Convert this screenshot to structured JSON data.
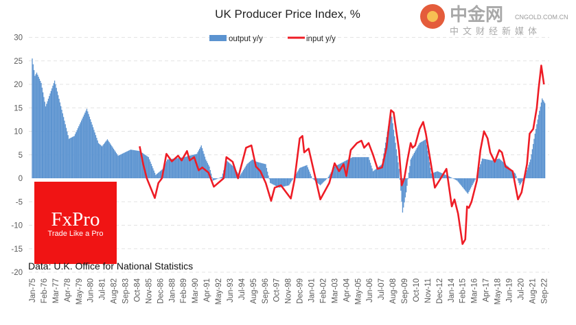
{
  "chart_data": {
    "type": "bar+line",
    "title": "UK Producer Price Index, %",
    "xlabel": "",
    "ylabel": "",
    "ylim": [
      -20,
      30
    ],
    "yticks": [
      30,
      25,
      20,
      15,
      10,
      5,
      0,
      -5,
      -10,
      -15,
      -20
    ],
    "grid": true,
    "legend_position": "top",
    "x_tick_labels": [
      "Jan-75",
      "Feb-76",
      "Mar-77",
      "Apr-78",
      "May-79",
      "Jun-80",
      "Jul-81",
      "Aug-82",
      "Sep-83",
      "Oct-84",
      "Nov-85",
      "Dec-86",
      "Jan-88",
      "Feb-89",
      "Mar-90",
      "Apr-91",
      "May-92",
      "Jun-93",
      "Jul-94",
      "Aug-95",
      "Sep-96",
      "Oct-97",
      "Nov-98",
      "Dec-99",
      "Jan-01",
      "Feb-02",
      "Mar-03",
      "Apr-04",
      "May-05",
      "Jun-06",
      "Jul-07",
      "Aug-08",
      "Sep-09",
      "Oct-10",
      "Nov-11",
      "Dec-12",
      "Jan-14",
      "Feb-15",
      "Mar-16",
      "Apr-17",
      "May-18",
      "Jun-19",
      "Jul-20",
      "Aug-21",
      "Sep-22"
    ],
    "series": [
      {
        "name": "output y/y",
        "type": "bar",
        "color": "#5b93d0",
        "points": [
          [
            "1975-01",
            25.5
          ],
          [
            "1975-04",
            21.8
          ],
          [
            "1975-06",
            22.5
          ],
          [
            "1975-11",
            20.3
          ],
          [
            "1976-04",
            15.3
          ],
          [
            "1977-02",
            20.8
          ],
          [
            "1978-06",
            8.4
          ],
          [
            "1978-12",
            9
          ],
          [
            "1980-02",
            14.8
          ],
          [
            "1981-03",
            7.5
          ],
          [
            "1981-07",
            6.8
          ],
          [
            "1982-01",
            8.3
          ],
          [
            "1983-01",
            4.8
          ],
          [
            "1984-03",
            6.1
          ],
          [
            "1985-01",
            5.8
          ],
          [
            "1985-11",
            4.5
          ],
          [
            "1986-07",
            0.7
          ],
          [
            "1987-03",
            2
          ],
          [
            "1987-08",
            4
          ],
          [
            "1989-03",
            4.5
          ],
          [
            "1990-05",
            5.2
          ],
          [
            "1990-10",
            7
          ],
          [
            "1991-03",
            4
          ],
          [
            "1991-07",
            2.5
          ],
          [
            "1991-11",
            -0.5
          ],
          [
            "1992-09",
            0.3
          ],
          [
            "1993-02",
            3.8
          ],
          [
            "1993-10",
            2.5
          ],
          [
            "1994-05",
            0.5
          ],
          [
            "1995-01",
            3
          ],
          [
            "1995-07",
            4
          ],
          [
            "1995-12",
            3.5
          ],
          [
            "1996-10",
            3
          ],
          [
            "1997-03",
            -1
          ],
          [
            "1998-01",
            -2
          ],
          [
            "1998-12",
            -1.5
          ],
          [
            "1999-05",
            0
          ],
          [
            "1999-12",
            2.2
          ],
          [
            "2000-08",
            2.8
          ],
          [
            "2001-02",
            0
          ],
          [
            "2001-11",
            -1.5
          ],
          [
            "2002-07",
            0
          ],
          [
            "2003-03",
            2.5
          ],
          [
            "2004-11",
            4.5
          ],
          [
            "2006-05",
            4.5
          ],
          [
            "2006-10",
            1.5
          ],
          [
            "2007-08",
            3
          ],
          [
            "2008-06",
            14.5
          ],
          [
            "2009-03",
            2
          ],
          [
            "2009-07",
            -7.3
          ],
          [
            "2009-11",
            -3
          ],
          [
            "2010-04",
            4
          ],
          [
            "2011-02",
            7.5
          ],
          [
            "2011-09",
            8.3
          ],
          [
            "2012-03",
            1
          ],
          [
            "2012-10",
            1.5
          ],
          [
            "2013-10",
            0.5
          ],
          [
            "2014-08",
            -0.5
          ],
          [
            "2015-08",
            -3.3
          ],
          [
            "2016-05",
            0
          ],
          [
            "2016-12",
            4.2
          ],
          [
            "2017-11",
            3.8
          ],
          [
            "2018-07",
            4.2
          ],
          [
            "2019-05",
            2.5
          ],
          [
            "2020-01",
            1
          ],
          [
            "2020-06",
            -1.5
          ],
          [
            "2020-11",
            0
          ],
          [
            "2021-06",
            4
          ],
          [
            "2021-11",
            9.5
          ],
          [
            "2022-03",
            13.5
          ],
          [
            "2022-07",
            17
          ],
          [
            "2022-10",
            16
          ]
        ]
      },
      {
        "name": "input y/y",
        "type": "line",
        "color": "#ee1c25",
        "points": [
          [
            "1985-01",
            6.8
          ],
          [
            "1985-05",
            3
          ],
          [
            "1985-09",
            0
          ],
          [
            "1986-06",
            -4.2
          ],
          [
            "1986-10",
            -1
          ],
          [
            "1987-02",
            0
          ],
          [
            "1987-07",
            5.2
          ],
          [
            "1988-01",
            3.6
          ],
          [
            "1988-08",
            4.8
          ],
          [
            "1988-12",
            3.8
          ],
          [
            "1989-06",
            5.8
          ],
          [
            "1989-09",
            3.8
          ],
          [
            "1990-02",
            4.5
          ],
          [
            "1990-07",
            1.7
          ],
          [
            "1990-11",
            2.3
          ],
          [
            "1991-06",
            1.2
          ],
          [
            "1991-12",
            -1.8
          ],
          [
            "1992-11",
            0
          ],
          [
            "1993-02",
            4.5
          ],
          [
            "1993-09",
            3.5
          ],
          [
            "1994-03",
            0
          ],
          [
            "1994-12",
            6.5
          ],
          [
            "1995-06",
            7
          ],
          [
            "1995-11",
            2.5
          ],
          [
            "1996-04",
            1.5
          ],
          [
            "1996-10",
            -1
          ],
          [
            "1997-04",
            -4.8
          ],
          [
            "1997-08",
            -2
          ],
          [
            "1998-03",
            -1.5
          ],
          [
            "1999-02",
            -4.3
          ],
          [
            "1999-06",
            -0.5
          ],
          [
            "1999-12",
            8.5
          ],
          [
            "2000-03",
            9
          ],
          [
            "2000-05",
            5.5
          ],
          [
            "2000-10",
            6.3
          ],
          [
            "2001-11",
            -4.5
          ],
          [
            "2002-09",
            -1
          ],
          [
            "2003-03",
            3.2
          ],
          [
            "2003-08",
            1.5
          ],
          [
            "2004-01",
            3
          ],
          [
            "2004-04",
            0.5
          ],
          [
            "2004-09",
            6
          ],
          [
            "2005-04",
            7.5
          ],
          [
            "2005-09",
            8
          ],
          [
            "2005-12",
            6.5
          ],
          [
            "2006-05",
            7.5
          ],
          [
            "2006-10",
            5
          ],
          [
            "2007-03",
            2
          ],
          [
            "2007-08",
            2.3
          ],
          [
            "2008-01",
            6.5
          ],
          [
            "2008-03",
            10
          ],
          [
            "2008-06",
            14.5
          ],
          [
            "2008-09",
            14
          ],
          [
            "2009-03",
            6
          ],
          [
            "2009-06",
            -1.5
          ],
          [
            "2009-09",
            0
          ],
          [
            "2009-12",
            3.5
          ],
          [
            "2010-04",
            7.5
          ],
          [
            "2010-06",
            6.5
          ],
          [
            "2010-09",
            7
          ],
          [
            "2011-02",
            10.5
          ],
          [
            "2011-06",
            12
          ],
          [
            "2011-09",
            9.5
          ],
          [
            "2012-01",
            5
          ],
          [
            "2012-07",
            -2
          ],
          [
            "2012-12",
            -0.5
          ],
          [
            "2013-08",
            2
          ],
          [
            "2014-02",
            -6
          ],
          [
            "2014-05",
            -4.5
          ],
          [
            "2014-09",
            -7.5
          ],
          [
            "2015-02",
            -14
          ],
          [
            "2015-05",
            -13
          ],
          [
            "2015-07",
            -6
          ],
          [
            "2015-09",
            -6.3
          ],
          [
            "2015-12",
            -5
          ],
          [
            "2016-06",
            -0.5
          ],
          [
            "2016-10",
            6
          ],
          [
            "2017-02",
            10
          ],
          [
            "2017-06",
            8.5
          ],
          [
            "2017-09",
            5.5
          ],
          [
            "2018-02",
            3.5
          ],
          [
            "2018-07",
            6
          ],
          [
            "2018-10",
            5.5
          ],
          [
            "2019-02",
            2.5
          ],
          [
            "2019-10",
            1.5
          ],
          [
            "2020-04",
            -4.5
          ],
          [
            "2020-08",
            -3
          ],
          [
            "2021-02",
            3
          ],
          [
            "2021-05",
            9.5
          ],
          [
            "2021-09",
            10.5
          ],
          [
            "2022-01",
            15
          ],
          [
            "2022-03",
            19
          ],
          [
            "2022-06",
            24
          ],
          [
            "2022-09",
            20
          ]
        ]
      }
    ],
    "source": "Data: U.K. Office for National Statistics"
  },
  "logo": {
    "brand": "FxPro",
    "tagline": "Trade Like a Pro",
    "color": "#f01414"
  },
  "watermark": {
    "name": "中金网",
    "domain": "CNGOLD.COM.CN",
    "tagline": "中文财经新媒体"
  }
}
